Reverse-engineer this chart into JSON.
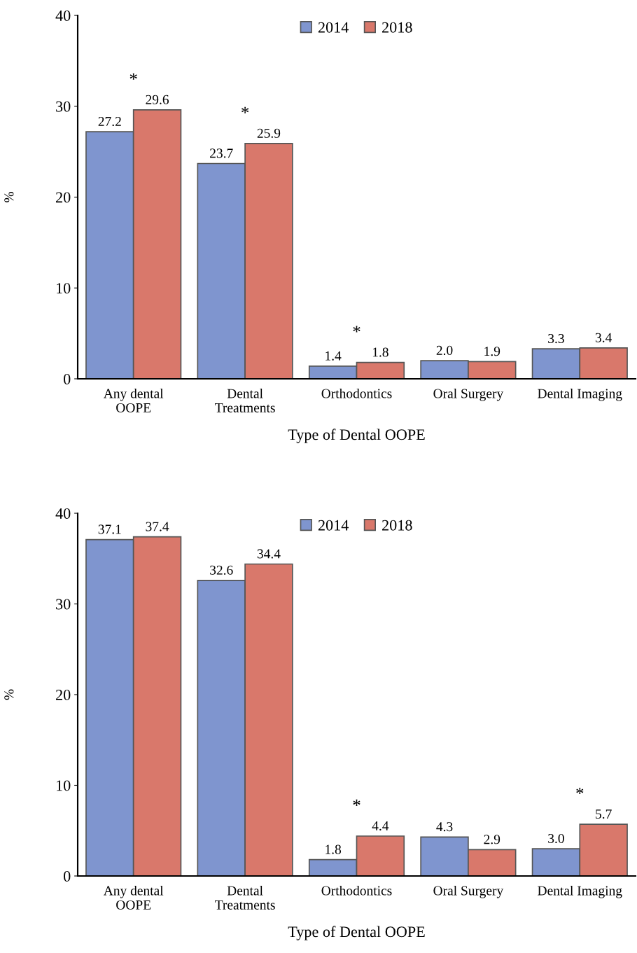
{
  "chart_data": [
    {
      "type": "bar",
      "xlabel": "Type of Dental OOPE",
      "ylabel": "%",
      "categories": [
        "Any dental\nOOPE",
        "Dental\nTreatments",
        "Orthodontics",
        "Oral Surgery",
        "Dental Imaging"
      ],
      "series": [
        {
          "name": "2014",
          "color": "#7f95cf",
          "values": [
            27.2,
            23.7,
            1.4,
            2.0,
            3.3
          ],
          "value_labels": [
            "27.2",
            "23.7",
            "1.4",
            "2.0",
            "3.3"
          ]
        },
        {
          "name": "2018",
          "color": "#d9786b",
          "values": [
            29.6,
            25.9,
            1.8,
            1.9,
            3.4
          ],
          "value_labels": [
            "29.6",
            "25.9",
            "1.8",
            "1.9",
            "3.4"
          ]
        }
      ],
      "ylim": [
        0,
        40
      ],
      "yticks": [
        0,
        10,
        20,
        30,
        40
      ],
      "grid": false,
      "legend": "top",
      "annotations": [
        {
          "text": "*",
          "x": "Any dental\nOOPE",
          "y": 29.6
        },
        {
          "text": "*",
          "x": "Dental\nTreatments",
          "y": 25.9
        },
        {
          "text": "*",
          "x": "Orthodontics",
          "y": 1.8
        }
      ]
    },
    {
      "type": "bar",
      "xlabel": "Type of Dental OOPE",
      "ylabel": "%",
      "categories": [
        "Any dental\nOOPE",
        "Dental\nTreatments",
        "Orthodontics",
        "Oral Surgery",
        "Dental Imaging"
      ],
      "series": [
        {
          "name": "2014",
          "color": "#7f95cf",
          "values": [
            37.1,
            32.6,
            1.8,
            4.3,
            3.0
          ],
          "value_labels": [
            "37.1",
            "32.6",
            "1.8",
            "4.3",
            "3.0"
          ]
        },
        {
          "name": "2018",
          "color": "#d9786b",
          "values": [
            37.4,
            34.4,
            4.4,
            2.9,
            5.7
          ],
          "value_labels": [
            "37.4",
            "34.4",
            "4.4",
            "2.9",
            "5.7"
          ]
        }
      ],
      "ylim": [
        0,
        40
      ],
      "yticks": [
        0,
        10,
        20,
        30,
        40
      ],
      "grid": false,
      "legend": "top",
      "annotations": [
        {
          "text": "*",
          "x": "Orthodontics",
          "y": 4.4
        },
        {
          "text": "*",
          "x": "Dental Imaging",
          "y": 5.7
        }
      ]
    }
  ]
}
